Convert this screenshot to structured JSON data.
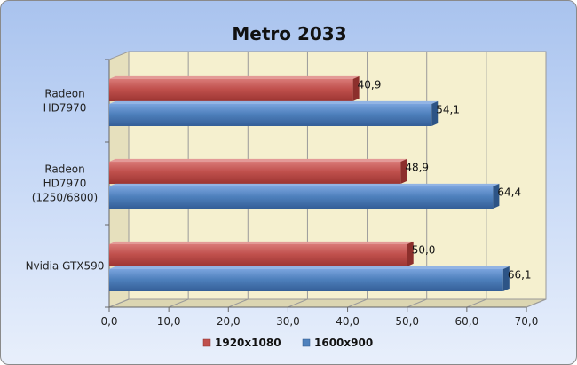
{
  "chart_data": {
    "type": "bar",
    "orientation": "horizontal",
    "title": "Metro 2033",
    "categories": [
      "Radeon HD7970",
      "Radeon HD7970 (1250/6800)",
      "Nvidia GTX590"
    ],
    "category_lines": [
      [
        "Radeon",
        "HD7970"
      ],
      [
        "Radeon",
        "HD7970",
        "(1250/6800)"
      ],
      [
        "Nvidia GTX590"
      ]
    ],
    "series": [
      {
        "name": "1920x1080",
        "values": [
          40.9,
          48.9,
          50.0
        ],
        "labels": [
          "40,9",
          "48,9",
          "50,0"
        ],
        "color": "#c0504d"
      },
      {
        "name": "1600x900",
        "values": [
          54.1,
          64.4,
          66.1
        ],
        "labels": [
          "54,1",
          "64,4",
          "66,1"
        ],
        "color": "#4f81bd"
      }
    ],
    "xlim": [
      0,
      70
    ],
    "ticks": [
      0,
      10,
      20,
      30,
      40,
      50,
      60,
      70
    ],
    "tick_labels": [
      "0,0",
      "10,0",
      "20,0",
      "30,0",
      "40,0",
      "50,0",
      "60,0",
      "70,0"
    ],
    "grid": true,
    "legend_position": "bottom",
    "plot_background": "#f5f0cf"
  }
}
